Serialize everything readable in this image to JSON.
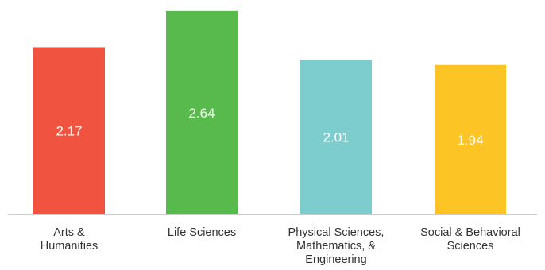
{
  "chart_data": {
    "type": "bar",
    "categories": [
      [
        "Arts &",
        "Humanities"
      ],
      [
        "Life Sciences"
      ],
      [
        "Physical Sciences,",
        "Mathematics, &",
        "Engineering"
      ],
      [
        "Social & Behavioral",
        "Sciences"
      ]
    ],
    "values": [
      2.17,
      2.64,
      2.01,
      1.94
    ],
    "data_labels": [
      "2.17",
      "2.64",
      "2.01",
      "1.94"
    ],
    "colors": [
      "#f05440",
      "#58ba4c",
      "#7dcdcf",
      "#fcc424"
    ],
    "label_color": "#ffffff",
    "axis_color": "#999999",
    "title": "",
    "xlabel": "",
    "ylabel": "",
    "ylim": [
      0,
      2.69
    ],
    "grid": false,
    "legend": "none"
  }
}
